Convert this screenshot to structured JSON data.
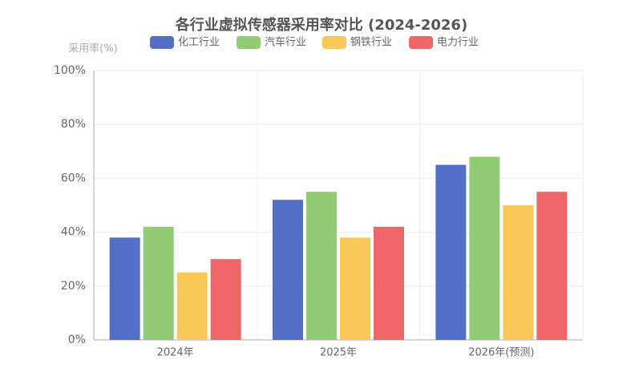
{
  "chart_data": {
    "type": "bar",
    "title": "各行业虚拟传感器采用率对比 (2024-2026)",
    "y_label": "采用率(%)",
    "categories": [
      "2024年",
      "2025年",
      "2026年(预测)"
    ],
    "series": [
      {
        "name": "化工行业",
        "color": "#5470c6",
        "values": [
          38,
          52,
          65
        ]
      },
      {
        "name": "汽车行业",
        "color": "#91cc75",
        "values": [
          42,
          55,
          68
        ]
      },
      {
        "name": "钢铁行业",
        "color": "#fac858",
        "values": [
          25,
          38,
          50
        ]
      },
      {
        "name": "电力行业",
        "color": "#ee6666",
        "values": [
          30,
          42,
          55
        ]
      }
    ],
    "ylim": [
      0,
      100
    ],
    "yticks": [
      {
        "value": 0,
        "label": "0%"
      },
      {
        "value": 20,
        "label": "20%"
      },
      {
        "value": 40,
        "label": "40%"
      },
      {
        "value": 60,
        "label": "60%"
      },
      {
        "value": 80,
        "label": "80%"
      },
      {
        "value": 100,
        "label": "100%"
      }
    ],
    "grid": true,
    "legend": "top"
  }
}
